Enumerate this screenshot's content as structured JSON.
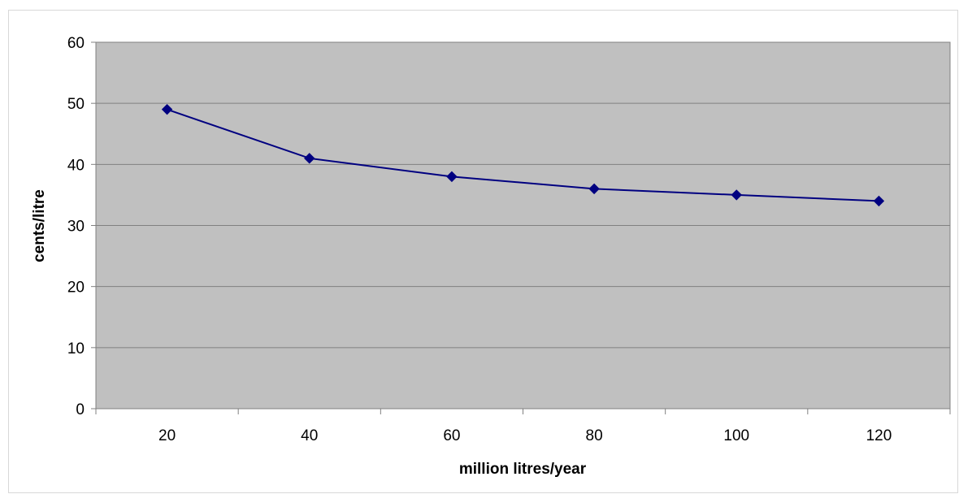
{
  "chart_data": {
    "type": "line",
    "title": "",
    "xlabel": "million litres/year",
    "ylabel": "cents/litre",
    "categories": [
      "20",
      "40",
      "60",
      "80",
      "100",
      "120"
    ],
    "series": [
      {
        "values": [
          49,
          41,
          38,
          36,
          35,
          34
        ]
      }
    ],
    "ylim": [
      0,
      60
    ],
    "yticks": [
      0,
      10,
      20,
      30,
      40,
      50,
      60
    ],
    "yticks_labels": [
      "0",
      "10",
      "20",
      "30",
      "40",
      "50",
      "60"
    ],
    "grid": "horizontal",
    "legend": "none",
    "colors": {
      "plot_background": "#c0c0c0",
      "line": "#000080",
      "marker": "#000080",
      "gridline": "#808080"
    },
    "marker": "diamond"
  }
}
